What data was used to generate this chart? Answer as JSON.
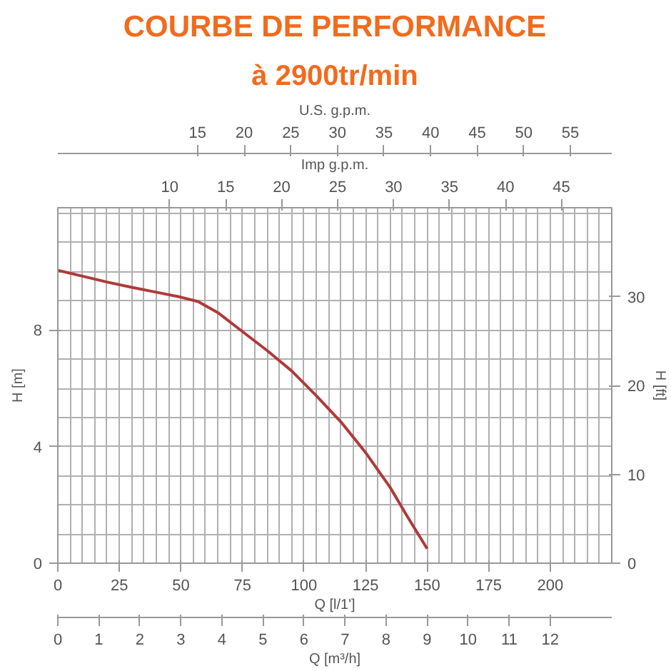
{
  "chart_data": {
    "type": "line",
    "title": "COURBE DE PERFORMANCE",
    "subtitle": "à 2900tr/min",
    "xlabel": "Q [l/1']",
    "x2label": "Q [m³/h]",
    "ylabel": "H [m]",
    "y2label": "H [ft]",
    "x": [
      0,
      10,
      20,
      30,
      40,
      50,
      57,
      65,
      75,
      85,
      95,
      105,
      115,
      125,
      135,
      142,
      150
    ],
    "series": [
      {
        "color": "#b03a3a",
        "values": [
          10.05,
          9.85,
          9.65,
          9.47,
          9.3,
          9.13,
          8.98,
          8.6,
          7.95,
          7.3,
          6.6,
          5.75,
          4.85,
          3.8,
          2.6,
          1.6,
          0.5
        ]
      }
    ],
    "xlim": [
      0,
      225
    ],
    "xticks": [
      0,
      25,
      50,
      75,
      100,
      125,
      150,
      175,
      200
    ],
    "x2lim": [
      0,
      13.5
    ],
    "x2ticks": [
      0,
      1,
      2,
      3,
      4,
      5,
      6,
      7,
      8,
      9,
      10,
      11,
      12
    ],
    "annotations": [
      "U.S. g.p.m.",
      "15",
      "20",
      "25",
      "30",
      "35",
      "40",
      "45",
      "50",
      "55",
      "Imp g.p.m.",
      "10",
      "15",
      "20",
      "25",
      "30",
      "35",
      "40",
      "45"
    ],
    "ylim": [
      0,
      12.2
    ],
    "yticks": [
      0,
      4,
      8
    ],
    "y2lim": [
      0,
      40
    ],
    "y2ticks": [
      0,
      10,
      20,
      30
    ],
    "grid": true,
    "marker": "none",
    "line_style": "solid"
  }
}
